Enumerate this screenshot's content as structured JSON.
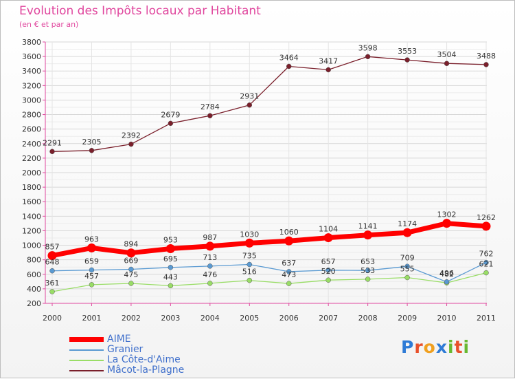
{
  "chart_data": {
    "type": "line",
    "title": "Evolution des Impôts locaux par Habitant",
    "subtitle": "(en € et par an)",
    "xlabel": "",
    "ylabel": "",
    "x": [
      "2000",
      "2001",
      "2002",
      "2003",
      "2004",
      "2005",
      "2006",
      "2007",
      "2008",
      "2009",
      "2010",
      "2011"
    ],
    "yticks": [
      "200",
      "400",
      "600",
      "800",
      "1000",
      "1200",
      "1400",
      "1600",
      "1800",
      "2000",
      "2200",
      "2400",
      "2600",
      "2800",
      "3000",
      "3200",
      "3400",
      "3600",
      "3800"
    ],
    "ylim": [
      200,
      3800
    ],
    "grid": true,
    "legend_position": "bottom-left",
    "series": [
      {
        "name": "AIME",
        "color": "#ff0000",
        "values": [
          857,
          963,
          894,
          953,
          987,
          1030,
          1060,
          1104,
          1141,
          1174,
          1302,
          1262
        ],
        "labels": [
          "857",
          "963",
          "894",
          "953",
          "987",
          "1030",
          "1060",
          "1104",
          "1141",
          "1174",
          "1302",
          "1262"
        ]
      },
      {
        "name": "Granier",
        "color": "#5a9ad2",
        "values": [
          648,
          659,
          669,
          695,
          713,
          735,
          637,
          657,
          653,
          709,
          496,
          762
        ],
        "labels": [
          "648",
          "659",
          "669",
          "695",
          "713",
          "735",
          "637",
          "657",
          "653",
          "709",
          "496",
          "762"
        ]
      },
      {
        "name": "La Côte-d'Aime",
        "color": "#99dd66",
        "values": [
          361,
          457,
          475,
          443,
          476,
          516,
          473,
          520,
          533,
          555,
          482,
          621
        ],
        "labels": [
          "361",
          "457",
          "475",
          "443",
          "476",
          "516",
          "473",
          "520",
          "533",
          "555",
          "482",
          "621"
        ]
      },
      {
        "name": "Mâcot-la-Plagne",
        "color": "#7a1f2b",
        "values": [
          2291,
          2305,
          2392,
          2679,
          2784,
          2931,
          3464,
          3417,
          3598,
          3553,
          3504,
          3488
        ],
        "labels": [
          "2291",
          "2305",
          "2392",
          "2679",
          "2784",
          "2931",
          "3464",
          "3417",
          "3598",
          "3553",
          "3504",
          "3488"
        ]
      }
    ]
  },
  "logo": {
    "text": "Proxiti",
    "letters": [
      "P",
      "r",
      "o",
      "x",
      "i",
      "t",
      "i"
    ],
    "colors": [
      "#2e7bd6",
      "#e8502a",
      "#f0a020",
      "#2e7bd6",
      "#68b830",
      "#e8502a",
      "#68b830"
    ]
  }
}
